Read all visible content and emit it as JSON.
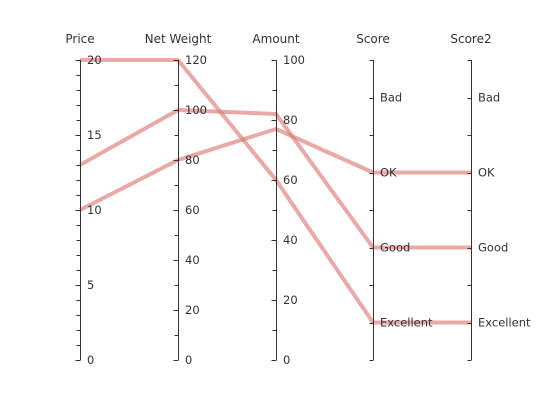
{
  "chart_data": {
    "type": "parallel_coordinates",
    "title": "",
    "axes": [
      {
        "name": "Price",
        "kind": "numeric",
        "range": [
          0,
          20
        ],
        "ticks": [
          0,
          5,
          10,
          15,
          20
        ],
        "minor_step": 1
      },
      {
        "name": "Net Weight",
        "kind": "numeric",
        "range": [
          0,
          120
        ],
        "ticks": [
          0,
          20,
          40,
          60,
          80,
          100,
          120
        ],
        "minor_step": 10
      },
      {
        "name": "Amount",
        "kind": "numeric",
        "range": [
          0,
          100
        ],
        "ticks": [
          0,
          20,
          40,
          60,
          80,
          100
        ],
        "minor_step": 10
      },
      {
        "name": "Score",
        "kind": "category",
        "categories": [
          "Excellent",
          "Good",
          "OK",
          "Bad"
        ]
      },
      {
        "name": "Score2",
        "kind": "category",
        "categories": [
          "Excellent",
          "Good",
          "OK",
          "Bad"
        ]
      }
    ],
    "series": [
      {
        "values": [
          20,
          120,
          60,
          "Excellent",
          "Excellent"
        ]
      },
      {
        "values": [
          13,
          100,
          82,
          "Good",
          "Good"
        ]
      },
      {
        "values": [
          10,
          80,
          77,
          "OK",
          "OK"
        ]
      }
    ],
    "line_color": "#dc7b78",
    "line_opacity": 0.65,
    "grid": false,
    "legend": "none"
  }
}
